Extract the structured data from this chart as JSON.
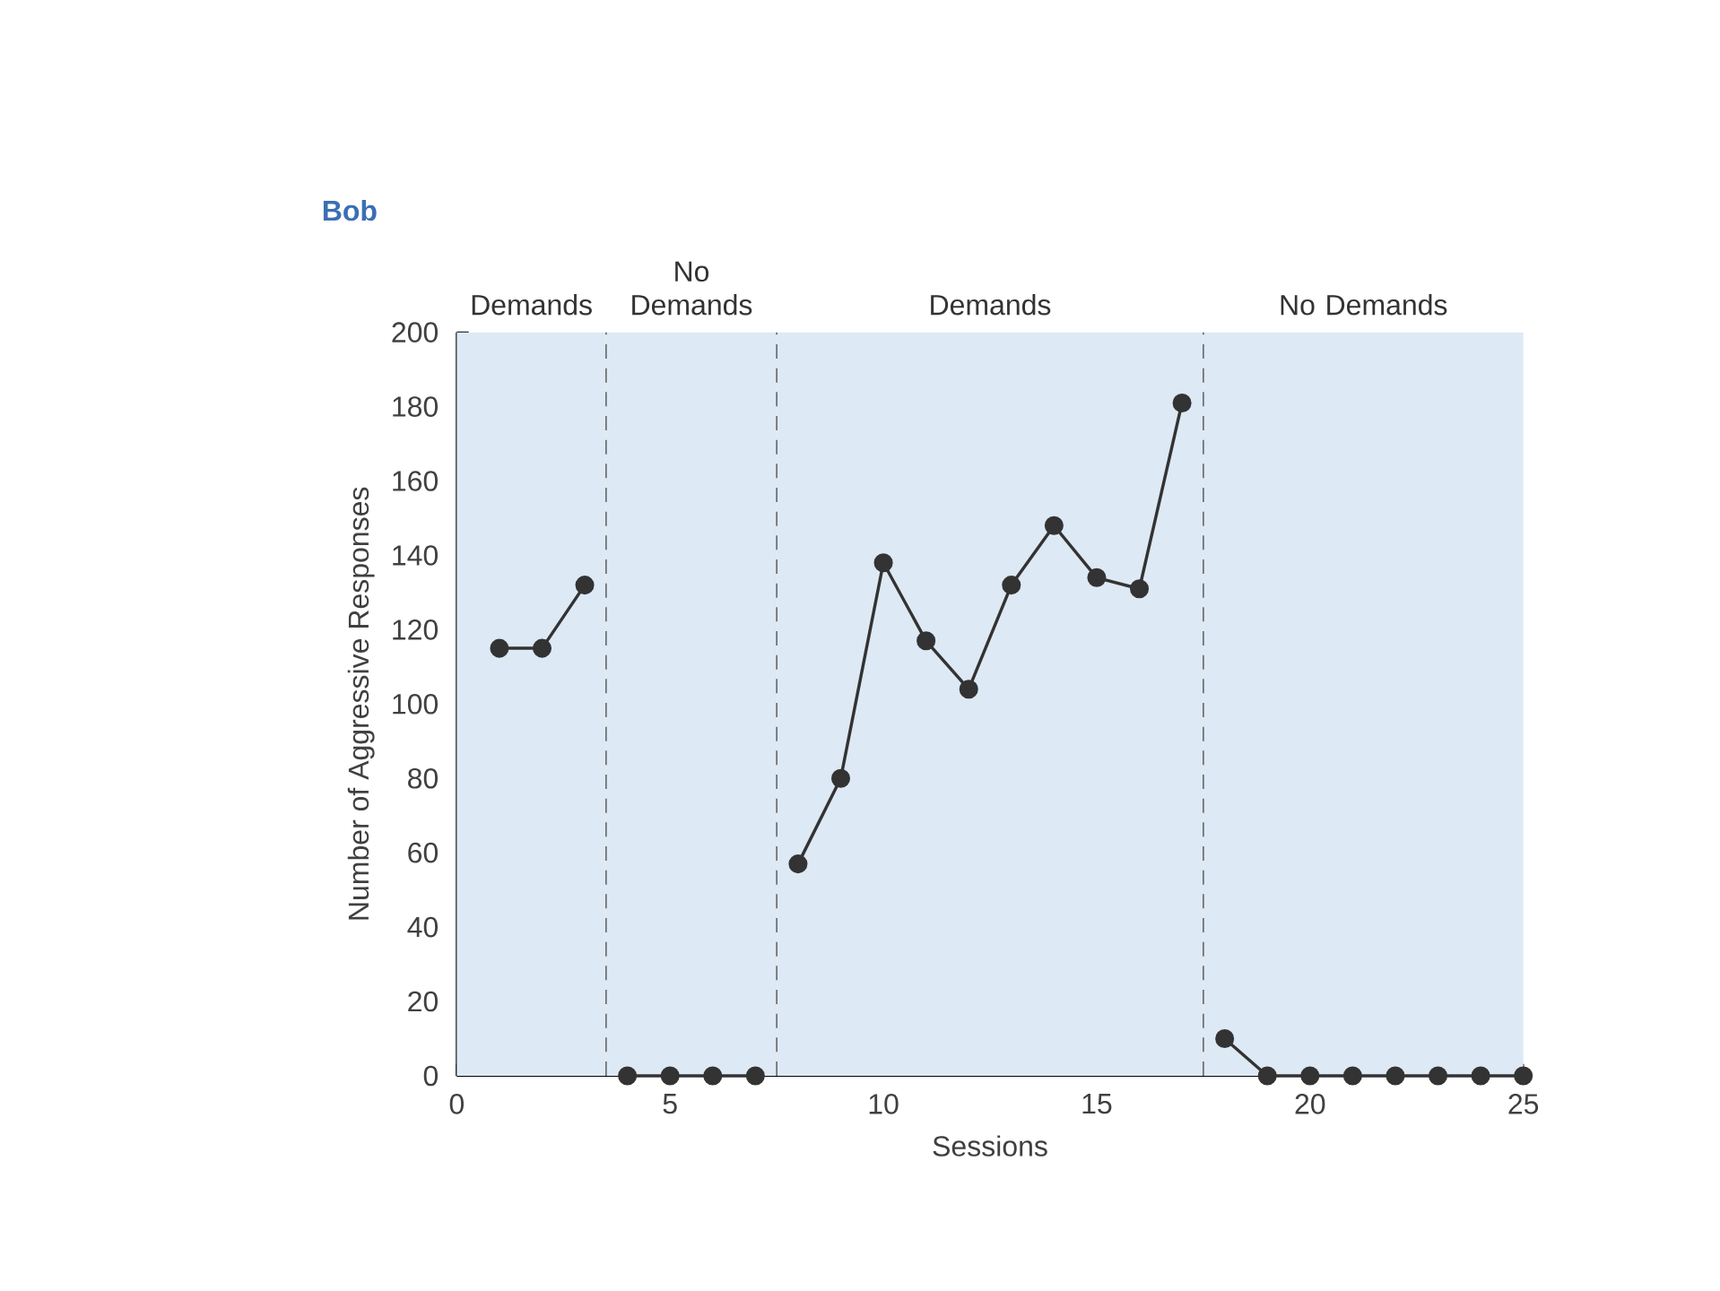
{
  "chart_data": {
    "type": "line",
    "title": "Bob",
    "xlabel": "Sessions",
    "ylabel": "Number of Aggressive Responses",
    "xlim": [
      0,
      25
    ],
    "xticks": [
      0,
      5,
      10,
      15,
      20,
      25
    ],
    "ylim": [
      0,
      200
    ],
    "yticks": [
      0,
      20,
      40,
      60,
      80,
      100,
      120,
      140,
      160,
      180,
      200
    ],
    "marker": "circle",
    "line_style": "solid",
    "series": [
      {
        "color": "#333333",
        "x": [
          1,
          2,
          3
        ],
        "values": [
          115,
          115,
          132
        ]
      },
      {
        "color": "#333333",
        "x": [
          4,
          5,
          6,
          7
        ],
        "values": [
          0,
          0,
          0,
          0
        ]
      },
      {
        "color": "#333333",
        "x": [
          8,
          9,
          10,
          11,
          12,
          13,
          14,
          15,
          16,
          17
        ],
        "values": [
          57,
          80,
          138,
          117,
          104,
          132,
          148,
          134,
          131,
          181
        ]
      },
      {
        "color": "#333333",
        "x": [
          18,
          19,
          20,
          21,
          22,
          23,
          24,
          25
        ],
        "values": [
          10,
          0,
          0,
          0,
          0,
          0,
          0,
          0
        ]
      }
    ],
    "ref_lines": [
      {
        "axis": "x",
        "value": 3.5,
        "color": "#666666",
        "line_style": "dashed"
      },
      {
        "axis": "x",
        "value": 7.5,
        "color": "#666666",
        "line_style": "dashed"
      },
      {
        "axis": "x",
        "value": 17.5,
        "color": "#666666",
        "line_style": "dashed"
      }
    ],
    "bands": [
      {
        "axis": "x",
        "from": 0,
        "to": 3.5,
        "label": "Demands",
        "color": "#dde9f5"
      },
      {
        "axis": "x",
        "from": 3.5,
        "to": 7.5,
        "label": "No Demands",
        "color": "#dde9f5"
      },
      {
        "axis": "x",
        "from": 7.5,
        "to": 17.5,
        "label": "Demands",
        "color": "#dde9f5"
      },
      {
        "axis": "x",
        "from": 17.5,
        "to": 25,
        "label": "No Demands",
        "color": "#dde9f5"
      }
    ]
  }
}
